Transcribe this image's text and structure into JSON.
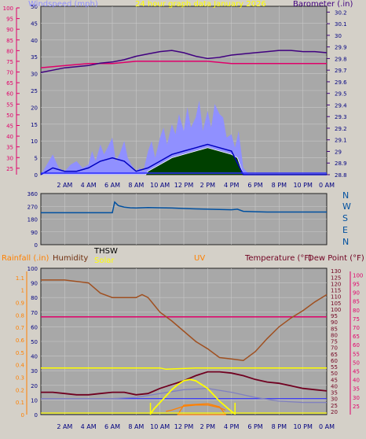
{
  "colors": {
    "panel_bg": "#d4d0c8",
    "plot_bg": "#a8a8a8",
    "windspeed": "#9090ff",
    "wind_avg": "#0000c0",
    "gust_fill": "#004000",
    "barometer": "#400080",
    "pink": "#e0006a",
    "direction": "#0050a0",
    "temperature": "#700020",
    "humidity": "#a05020",
    "solar": "#ffff00",
    "uv": "#ff8000",
    "rain": "#ff8000",
    "dew": "#e0006a",
    "thsw": "#8080c0",
    "baseline": "#3030ff"
  },
  "x_ticks": [
    "2 AM",
    "4 AM",
    "6 AM",
    "8 AM",
    "10 AM",
    "12 PM",
    "2 PM",
    "4 PM",
    "6 PM",
    "8 PM",
    "10 PM",
    "0 AM"
  ],
  "chart_data": [
    {
      "type": "line",
      "title": "24 hour graph data    January 2026",
      "legend": [
        "Windspeed (mph)",
        "Barometer (.in)"
      ],
      "left_ticks": [
        "0",
        "5",
        "10",
        "15",
        "20",
        "25",
        "30",
        "35",
        "40",
        "45",
        "50"
      ],
      "left_ticks_outer": [
        "25",
        "30",
        "35",
        "40",
        "45",
        "50",
        "55",
        "60",
        "65",
        "70",
        "75",
        "80",
        "85",
        "90",
        "95",
        "100"
      ],
      "right_ticks": [
        "28.8",
        "28.9",
        "29",
        "29.1",
        "29.2",
        "29.3",
        "29.4",
        "29.5",
        "29.6",
        "29.7",
        "29.8",
        "29.9",
        "30",
        "30.1",
        "30.2"
      ],
      "ylim_left": [
        0,
        50
      ],
      "ylim_right": [
        28.8,
        30.25
      ],
      "x_hours": [
        0,
        24
      ],
      "series": [
        {
          "name": "Barometer (.in)",
          "axis": "right",
          "x": [
            0,
            1,
            2,
            3,
            4,
            5,
            6,
            7,
            8,
            9,
            10,
            11,
            12,
            13,
            14,
            15,
            16,
            17,
            18,
            19,
            20,
            21,
            22,
            23,
            24
          ],
          "values": [
            29.68,
            29.7,
            29.72,
            29.73,
            29.74,
            29.76,
            29.77,
            29.79,
            29.82,
            29.84,
            29.86,
            29.87,
            29.85,
            29.82,
            29.8,
            29.81,
            29.83,
            29.84,
            29.85,
            29.86,
            29.87,
            29.87,
            29.86,
            29.86,
            29.85
          ]
        },
        {
          "name": "Outer humidity",
          "axis": "outer",
          "x": [
            0,
            2,
            4,
            6,
            8,
            10,
            12,
            14,
            16,
            18,
            20,
            22,
            24
          ],
          "values": [
            72,
            73,
            74,
            74,
            75,
            75,
            75,
            75,
            74,
            74,
            74,
            74,
            74
          ]
        },
        {
          "name": "Windspeed (mph)",
          "axis": "left",
          "x": [
            0,
            0.5,
            1,
            1.5,
            2,
            2.5,
            3,
            3.5,
            4,
            4.3,
            4.6,
            5,
            5.3,
            5.6,
            6,
            6.3,
            6.6,
            7,
            7.3,
            7.6,
            8,
            8.3,
            8.6,
            9,
            9.3,
            9.6,
            10,
            10.3,
            10.6,
            11,
            11.3,
            11.6,
            12,
            12.3,
            12.6,
            13,
            13.3,
            13.6,
            14,
            14.3,
            14.6,
            15,
            15.3,
            15.6,
            16,
            16.3,
            16.6,
            17,
            17.5,
            18,
            19,
            20,
            21,
            22,
            23,
            24
          ],
          "values": [
            0,
            3,
            6,
            2,
            1,
            3,
            4,
            2,
            3,
            7,
            4,
            9,
            6,
            8,
            11,
            4,
            6,
            10,
            5,
            3,
            1,
            2,
            1,
            7,
            10,
            5,
            11,
            14,
            9,
            15,
            12,
            18,
            13,
            20,
            14,
            17,
            22,
            13,
            19,
            14,
            21,
            18,
            17,
            11,
            12,
            8,
            13,
            2,
            0,
            0,
            0,
            0,
            0,
            0,
            0,
            0
          ]
        },
        {
          "name": "Wind average",
          "axis": "left",
          "x": [
            0,
            1,
            2,
            3,
            4,
            5,
            6,
            7,
            8,
            9,
            10,
            11,
            12,
            13,
            14,
            15,
            16,
            17,
            18,
            24
          ],
          "values": [
            0,
            2,
            1,
            1,
            2,
            4,
            5,
            4,
            1,
            2,
            4,
            6,
            7,
            8,
            9,
            8,
            7,
            0,
            0,
            0
          ]
        },
        {
          "name": "Gust",
          "axis": "left",
          "x": [
            0,
            8.8,
            9,
            10,
            11,
            12,
            13,
            14,
            15,
            16,
            16.5,
            17,
            24
          ],
          "values": [
            0,
            0,
            1,
            3,
            5,
            6,
            7,
            8,
            7,
            6,
            5,
            0,
            0
          ]
        }
      ]
    },
    {
      "type": "line",
      "legend": [
        "N",
        "W",
        "S",
        "E",
        "N"
      ],
      "left_ticks": [
        "0",
        "90",
        "180",
        "270",
        "360"
      ],
      "ylim": [
        0,
        360
      ],
      "series": [
        {
          "name": "Direction",
          "x": [
            0,
            1,
            2,
            3,
            4,
            5,
            6,
            6.2,
            6.5,
            7,
            7.5,
            8,
            9,
            10,
            11,
            12,
            13,
            14,
            15,
            16,
            16.5,
            17,
            18,
            19,
            20,
            21,
            22,
            23,
            24
          ],
          "values": [
            225,
            225,
            225,
            225,
            225,
            225,
            225,
            300,
            275,
            265,
            260,
            258,
            262,
            260,
            258,
            255,
            252,
            250,
            248,
            246,
            250,
            235,
            232,
            230,
            230,
            230,
            230,
            230,
            230
          ]
        }
      ]
    },
    {
      "type": "line",
      "legend": [
        "Rainfall (.in)",
        "Humidity",
        "THSW",
        "Solar",
        "UV",
        "Temperature (°F)",
        "Dew Point (°F)"
      ],
      "rain_ticks": [
        "0",
        "0.1",
        "0.2",
        "0.3",
        "0.4",
        "0.5",
        "0.6",
        "0.7",
        "0.8",
        "0.9",
        "1",
        "1.1"
      ],
      "left_ticks": [
        "0",
        "10",
        "20",
        "30",
        "40",
        "50",
        "60",
        "70",
        "80",
        "90",
        "100"
      ],
      "right_ticks": [
        "20",
        "25",
        "30",
        "35",
        "40",
        "45",
        "50",
        "55",
        "60",
        "65",
        "70",
        "75",
        "80",
        "85",
        "90",
        "95",
        "100",
        "105",
        "110",
        "115",
        "120",
        "125",
        "130"
      ],
      "right_ticks_outer": [
        "25",
        "30",
        "35",
        "40",
        "45",
        "50",
        "55",
        "60",
        "65",
        "70",
        "75",
        "80",
        "85",
        "90",
        "95",
        "100"
      ],
      "ylim_left": [
        0,
        100
      ],
      "ylim_right": [
        17.5,
        132
      ],
      "series": [
        {
          "name": "Humidity",
          "axis": "left",
          "x": [
            0,
            1,
            2,
            3,
            4,
            5,
            6,
            7,
            8,
            8.5,
            9,
            9.5,
            10,
            11,
            12,
            13,
            14,
            15,
            16,
            17,
            18,
            19,
            20,
            21,
            22,
            23,
            24
          ],
          "values": [
            92,
            92,
            92,
            91,
            90,
            83,
            80,
            80,
            80,
            82,
            80,
            75,
            70,
            64,
            57,
            50,
            45,
            39,
            38,
            37,
            43,
            52,
            60,
            66,
            71,
            77,
            82
          ]
        },
        {
          "name": "Temperature (°F)",
          "axis": "right",
          "x": [
            0,
            1,
            2,
            3,
            4,
            5,
            6,
            7,
            8,
            9,
            10,
            11,
            12,
            13,
            14,
            15,
            16,
            17,
            18,
            19,
            20,
            21,
            22,
            23,
            24
          ],
          "values": [
            35,
            35,
            34,
            33,
            33,
            34,
            35,
            35,
            33,
            34,
            38,
            41,
            44,
            48,
            51,
            51,
            50,
            48,
            45,
            43,
            42,
            40,
            38,
            37,
            36
          ]
        },
        {
          "name": "Solar",
          "axis": "right",
          "x": [
            9.2,
            9.5,
            10,
            10.5,
            11,
            11.5,
            12,
            12.5,
            13,
            13.5,
            14,
            14.5,
            15,
            15.5,
            16,
            16.3
          ],
          "values": [
            18,
            22,
            27,
            32,
            37,
            41,
            44,
            45,
            44,
            41,
            38,
            33,
            28,
            24,
            20,
            18
          ]
        },
        {
          "name": "THSW",
          "axis": "right",
          "x": [
            0,
            2,
            4,
            6,
            8,
            10,
            12,
            14,
            16,
            18,
            20,
            22,
            24
          ],
          "values": [
            30,
            30,
            30,
            30,
            31,
            34,
            37,
            38,
            35,
            31,
            28,
            27,
            27
          ]
        },
        {
          "name": "UV",
          "axis": "right",
          "x": [
            10.5,
            11,
            12,
            13,
            14,
            15,
            15.5
          ],
          "values": [
            20,
            21,
            24,
            25,
            25,
            23,
            21
          ]
        },
        {
          "name": "Dew Point (°F)",
          "axis": "outer",
          "x": [
            0,
            2,
            4,
            6,
            8,
            10,
            12,
            14,
            16,
            18,
            20,
            22,
            24
          ],
          "values": [
            76,
            76,
            76,
            76,
            76,
            76,
            76,
            76,
            76,
            76,
            76,
            76,
            76
          ]
        },
        {
          "name": "Solar high line",
          "axis": "right",
          "x": [
            0,
            10,
            10.5,
            13,
            13.5,
            24
          ],
          "values": [
            54,
            54,
            53,
            54,
            54,
            54
          ]
        },
        {
          "name": "Baseline",
          "axis": "right",
          "x": [
            0,
            24
          ],
          "values": [
            30,
            30
          ]
        }
      ]
    }
  ]
}
